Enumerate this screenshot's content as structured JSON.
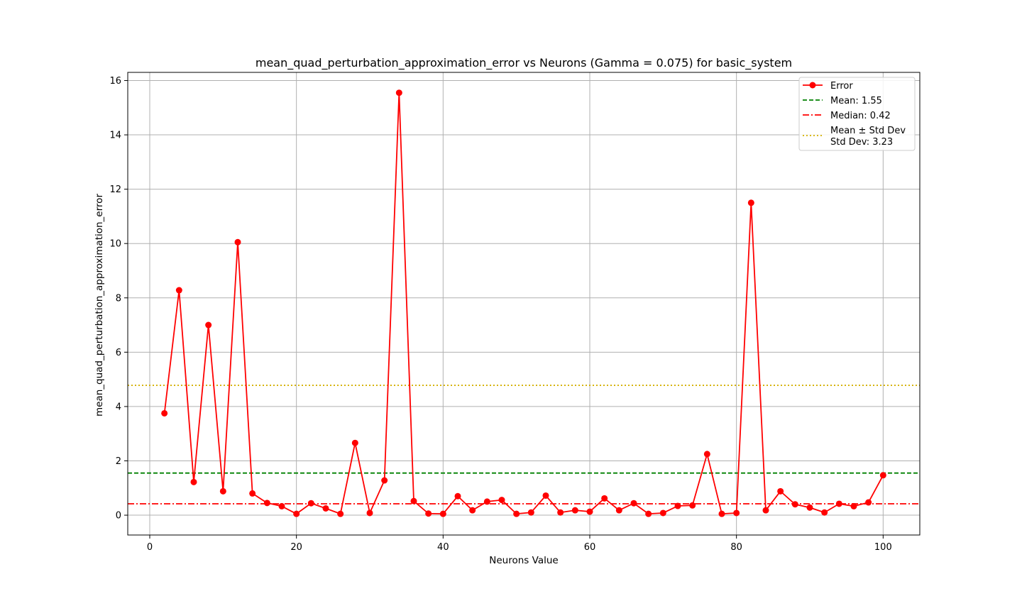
{
  "chart_data": {
    "type": "line",
    "title": "mean_quad_perturbation_approximation_error vs Neurons (Gamma = 0.075) for basic_system",
    "xlabel": "Neurons Value",
    "ylabel": "mean_quad_perturbation_approximation_error",
    "xlim": [
      -3,
      105
    ],
    "ylim": [
      -0.73,
      16.3
    ],
    "xticks": [
      0,
      20,
      40,
      60,
      80,
      100
    ],
    "yticks": [
      0,
      2,
      4,
      6,
      8,
      10,
      12,
      14,
      16
    ],
    "grid": true,
    "legend_position": "top-right",
    "series": [
      {
        "name": "Error",
        "color": "#ff0000",
        "style": "line-with-circle-markers",
        "x": [
          2,
          4,
          6,
          8,
          10,
          12,
          14,
          16,
          18,
          20,
          22,
          24,
          26,
          28,
          30,
          32,
          34,
          36,
          38,
          40,
          42,
          44,
          46,
          48,
          50,
          52,
          54,
          56,
          58,
          60,
          62,
          64,
          66,
          68,
          70,
          72,
          74,
          76,
          78,
          80,
          82,
          84,
          86,
          88,
          90,
          92,
          94,
          96,
          98,
          100
        ],
        "values": [
          3.75,
          8.28,
          1.22,
          7.0,
          0.88,
          10.05,
          0.8,
          0.45,
          0.33,
          0.05,
          0.44,
          0.25,
          0.05,
          2.66,
          0.08,
          1.28,
          15.55,
          0.52,
          0.06,
          0.05,
          0.7,
          0.18,
          0.5,
          0.56,
          0.05,
          0.1,
          0.72,
          0.1,
          0.18,
          0.13,
          0.62,
          0.18,
          0.44,
          0.05,
          0.08,
          0.34,
          0.36,
          2.25,
          0.05,
          0.08,
          11.5,
          0.18,
          0.88,
          0.4,
          0.28,
          0.1,
          0.42,
          0.33,
          0.47,
          1.47
        ]
      }
    ],
    "reference_lines": [
      {
        "name": "Mean: 1.55",
        "value": 1.55,
        "color": "#008000",
        "style": "dashed"
      },
      {
        "name": "Median: 0.42",
        "value": 0.42,
        "color": "#ff0000",
        "style": "dashdot"
      },
      {
        "name": "Mean ± Std Dev",
        "value": 4.78,
        "color": "#d4b000",
        "style": "dotted"
      }
    ],
    "legend_entries": [
      {
        "label": "Error"
      },
      {
        "label": "Mean: 1.55"
      },
      {
        "label": "Median: 0.42"
      },
      {
        "label": "Mean ± Std Dev",
        "label_line2": "Std Dev: 3.23"
      }
    ]
  }
}
